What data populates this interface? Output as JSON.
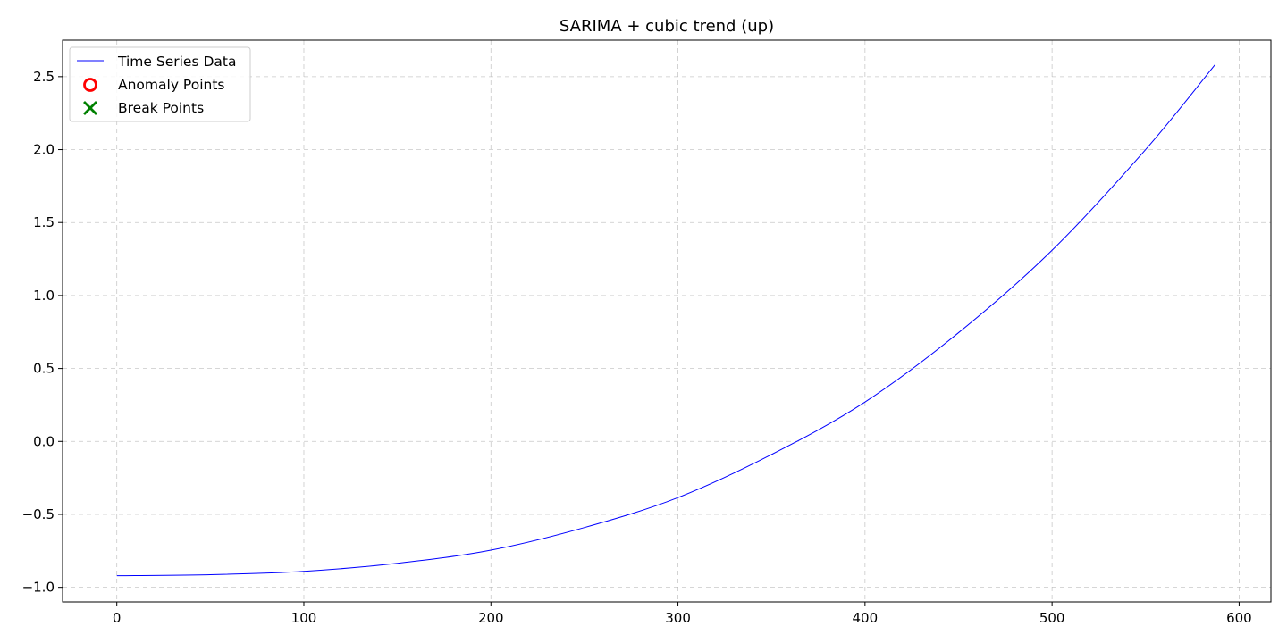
{
  "chart_data": {
    "type": "line",
    "title": "SARIMA + cubic trend (up)",
    "xlabel": "",
    "ylabel": "",
    "xlim": [
      -29,
      617
    ],
    "ylim": [
      -1.1,
      2.75
    ],
    "x_ticks": [
      0,
      100,
      200,
      300,
      400,
      500,
      600
    ],
    "x_tick_labels": [
      "0",
      "100",
      "200",
      "300",
      "400",
      "500",
      "600"
    ],
    "y_ticks": [
      -1.0,
      -0.5,
      0.0,
      0.5,
      1.0,
      1.5,
      2.0,
      2.5
    ],
    "y_tick_labels": [
      "−1.0",
      "−0.5",
      "0.0",
      "0.5",
      "1.0",
      "1.5",
      "2.0",
      "2.5"
    ],
    "grid": true,
    "legend_position": "top-left",
    "series": [
      {
        "name": "Time Series Data",
        "kind": "line",
        "color": "#0000ff",
        "x": [
          0,
          50,
          100,
          150,
          200,
          250,
          300,
          350,
          400,
          450,
          500,
          550,
          587
        ],
        "y": [
          -0.92,
          -0.913,
          -0.89,
          -0.835,
          -0.745,
          -0.59,
          -0.385,
          -0.09,
          0.27,
          0.745,
          1.31,
          2.0,
          2.58
        ]
      },
      {
        "name": "Anomaly Points",
        "kind": "scatter",
        "marker": "circle-open",
        "color": "#ff0000",
        "x": [],
        "y": []
      },
      {
        "name": "Break Points",
        "kind": "scatter",
        "marker": "x",
        "color": "#008000",
        "x": [],
        "y": []
      }
    ]
  }
}
